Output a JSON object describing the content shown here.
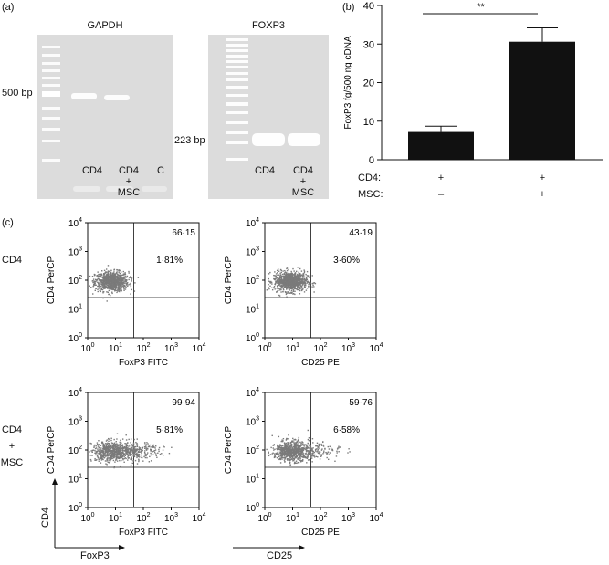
{
  "panel_a": {
    "label": "(a)",
    "gapdh": {
      "title": "GAPDH",
      "marker": "500 bp",
      "lanes": [
        {
          "text": "CD4"
        },
        {
          "lines": [
            "CD4",
            "+",
            "MSC"
          ]
        },
        {
          "text": "C"
        }
      ]
    },
    "foxp3": {
      "title": "FOXP3",
      "marker": "223 bp",
      "lanes": [
        {
          "text": "CD4"
        },
        {
          "lines": [
            "CD4",
            "+",
            "MSC"
          ]
        }
      ]
    }
  },
  "panel_b": {
    "label": "(b)",
    "significance": "**",
    "row_labels": [
      "CD4:",
      "MSC:"
    ],
    "conditions": [
      [
        "+",
        "–"
      ],
      [
        "+",
        "+"
      ]
    ],
    "colors": {
      "bar": "#111111"
    }
  },
  "panel_c": {
    "label": "(c)",
    "row_labels": [
      [
        "CD4"
      ],
      [
        "CD4",
        "+",
        "MSC"
      ]
    ],
    "axis_arrows": {
      "y": "CD4",
      "x1": "FoxP3",
      "x2": "CD25"
    }
  },
  "chart_data": [
    {
      "type": "bar",
      "categories": [
        "CD4+ / MSC–",
        "CD4+ / MSC+"
      ],
      "values": [
        7.2,
        30.6
      ],
      "error": [
        1.5,
        3.6
      ],
      "ylabel": "FoxP3 fg/500 ng cDNA",
      "ylim": [
        0,
        40
      ],
      "yticks": [
        0,
        10,
        20,
        30,
        40
      ]
    },
    {
      "type": "scatter",
      "xlabel": "FoxP3 FITC",
      "ylabel": "CD4 PerCP",
      "xscale": "log",
      "yscale": "log",
      "ticks": [
        "10^0",
        "10^1",
        "10^2",
        "10^3",
        "10^4"
      ],
      "upper_right": "66·15",
      "upper_left": "1·81%",
      "cluster_center": [
        7,
        95
      ]
    },
    {
      "type": "scatter",
      "xlabel": "CD25 PE",
      "ylabel": "CD4 PerCP",
      "xscale": "log",
      "yscale": "log",
      "ticks": [
        "10^0",
        "10^1",
        "10^2",
        "10^3",
        "10^4"
      ],
      "upper_right": "43·19",
      "upper_left": "3·60%",
      "cluster_center": [
        8,
        95
      ]
    },
    {
      "type": "scatter",
      "xlabel": "FoxP3 FITC",
      "ylabel": "CD4 PerCP",
      "xscale": "log",
      "yscale": "log",
      "ticks": [
        "10^0",
        "10^1",
        "10^2",
        "10^3",
        "10^4"
      ],
      "upper_right": "99·94",
      "upper_left": "5·81%",
      "cluster_center": [
        8,
        95
      ]
    },
    {
      "type": "scatter",
      "xlabel": "CD25 PE",
      "ylabel": "CD4 PerCP",
      "xscale": "log",
      "yscale": "log",
      "ticks": [
        "10^0",
        "10^1",
        "10^2",
        "10^3",
        "10^4"
      ],
      "upper_right": "59·76",
      "upper_left": "6·58%",
      "cluster_center": [
        9,
        95
      ]
    }
  ]
}
